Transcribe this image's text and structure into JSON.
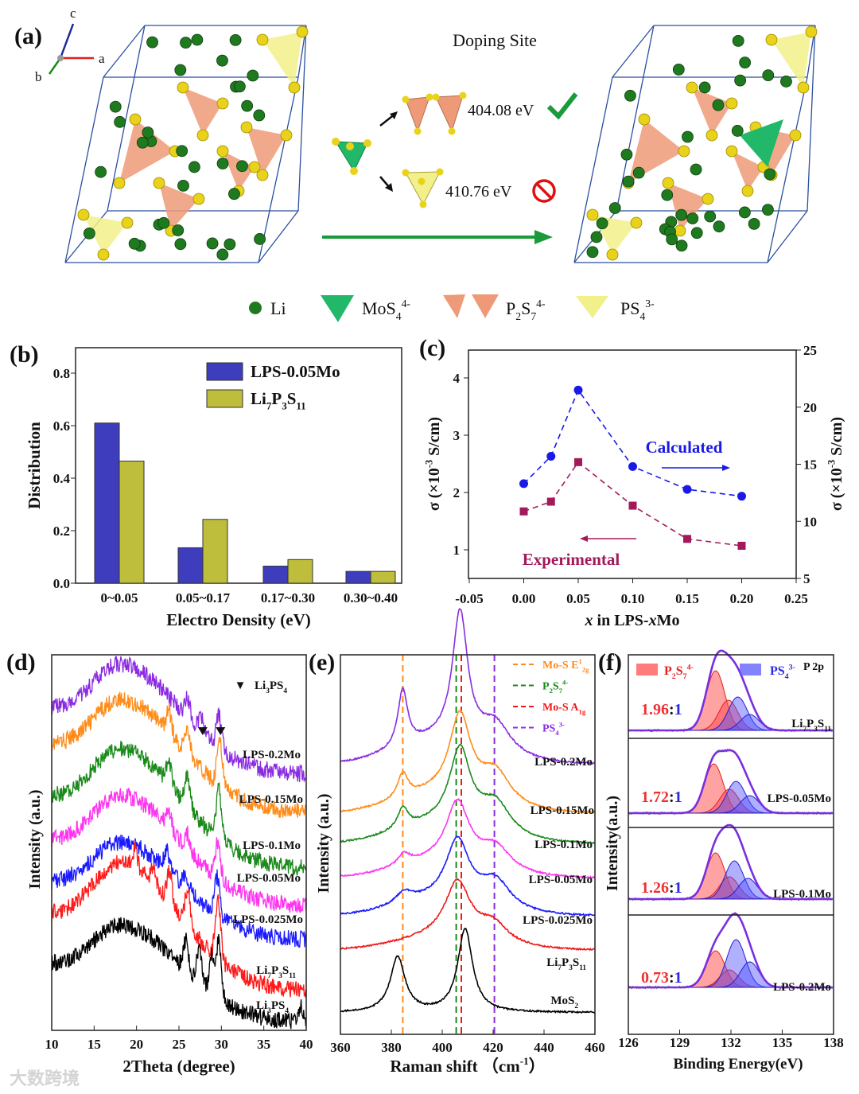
{
  "figure": {
    "panel_labels": [
      "(a)",
      "(b)",
      "(c)",
      "(d)",
      "(e)",
      "(f)"
    ],
    "watermark": "大数跨境"
  },
  "panel_a": {
    "axis_labels": [
      "a",
      "b",
      "c"
    ],
    "title": "Doping Site",
    "energies": [
      {
        "value": "404.08 eV",
        "status": "favorable",
        "icon": "checkmark-icon",
        "color": "#1a9a3a"
      },
      {
        "value": "410.76 eV",
        "status": "unfavorable",
        "icon": "prohibited-icon",
        "color": "#e01010"
      }
    ],
    "legend": [
      {
        "name": "li",
        "segments": [
          {
            "t": "Li"
          }
        ]
      },
      {
        "name": "mos4",
        "segments": [
          {
            "t": "MoS"
          },
          {
            "t": "4",
            "s": "sub"
          },
          {
            "t": "4-",
            "s": "sup"
          }
        ]
      },
      {
        "name": "p2s7",
        "segments": [
          {
            "t": "P"
          },
          {
            "t": "2",
            "s": "sub"
          },
          {
            "t": "S"
          },
          {
            "t": "7",
            "s": "sub"
          },
          {
            "t": "4-",
            "s": "sup"
          }
        ]
      },
      {
        "name": "ps4",
        "segments": [
          {
            "t": "PS"
          },
          {
            "t": "4",
            "s": "sub"
          },
          {
            "t": "3-",
            "s": "sup"
          }
        ]
      }
    ],
    "colors": {
      "li": "#1f7a1f",
      "s": "#e8d21a",
      "mos4": "#22b86a",
      "p2s7": "#ee9a78",
      "ps4": "#f2f08a",
      "cell": "#2a4fa0"
    }
  },
  "chart_data": [
    {
      "panel": "b",
      "type": "bar",
      "categories": [
        "0~0.05",
        "0.05~0.17",
        "0.17~0.30",
        "0.30~0.40"
      ],
      "series": [
        {
          "segments": [
            {
              "t": "LPS-0.05Mo"
            }
          ],
          "values": [
            0.61,
            0.135,
            0.065,
            0.045
          ],
          "color": "#3d3dbd"
        },
        {
          "segments": [
            {
              "t": "Li"
            },
            {
              "t": "7",
              "s": "sub"
            },
            {
              "t": "P"
            },
            {
              "t": "3",
              "s": "sub"
            },
            {
              "t": "S"
            },
            {
              "t": "11",
              "s": "sub"
            }
          ],
          "values": [
            0.465,
            0.243,
            0.09,
            0.045
          ],
          "color": "#bebe3c"
        }
      ],
      "xlabel": "Electro Density (eV)",
      "ylabel": "Distribution",
      "ylim": [
        0,
        0.89
      ],
      "yticks": [
        0,
        0.2,
        0.4,
        0.6,
        0.8
      ],
      "ytick_labels": [
        "0.0",
        "0.2",
        "0.4",
        "0.6",
        "0.8"
      ],
      "legend_position": "top-right"
    },
    {
      "panel": "c",
      "type": "line",
      "x": [
        0,
        0.025,
        0.05,
        0.1,
        0.15,
        0.2
      ],
      "series": [
        {
          "name": "Experimental",
          "axis": "left",
          "values": [
            1.67,
            1.84,
            2.53,
            1.77,
            1.19,
            1.07
          ],
          "color": "#a3195b",
          "marker": "square"
        },
        {
          "name": "Calculated",
          "axis": "right",
          "values": [
            13.3,
            15.7,
            21.5,
            14.8,
            12.8,
            12.2
          ],
          "color": "#1a1ae6",
          "marker": "circle"
        }
      ],
      "xlim": [
        -0.05,
        0.25
      ],
      "xticks": [
        -0.05,
        0,
        0.05,
        0.1,
        0.15,
        0.2,
        0.25
      ],
      "xtick_labels": [
        "-0.05",
        "0.00",
        "0.05",
        "0.10",
        "0.15",
        "0.20",
        "0.25"
      ],
      "ylim_left": [
        0.5,
        4.5
      ],
      "yticks_left": [
        1,
        2,
        3,
        4
      ],
      "ytick_labels_left": [
        "1",
        "2",
        "3",
        "4"
      ],
      "ylim_right": [
        5,
        25
      ],
      "yticks_right": [
        5,
        10,
        15,
        20,
        25
      ],
      "ytick_labels_right": [
        "5",
        "10",
        "15",
        "20",
        "25"
      ],
      "xlabel_segments": [
        {
          "t": "x",
          "s": "it"
        },
        {
          "t": " in LPS-"
        },
        {
          "t": "x",
          "s": "it"
        },
        {
          "t": "Mo"
        }
      ],
      "ylabel_segments": [
        {
          "t": "σ (×10"
        },
        {
          "t": "-3",
          "s": "sup"
        },
        {
          "t": " S/cm)"
        }
      ]
    },
    {
      "panel": "d",
      "type": "line",
      "xlim": [
        10,
        40
      ],
      "xticks": [
        10,
        15,
        20,
        25,
        30,
        35,
        40
      ],
      "xtick_labels": [
        "10",
        "15",
        "20",
        "25",
        "30",
        "35",
        "40"
      ],
      "xlabel": "2Theta (degree)",
      "ylabel": "Intensity (a.u.)",
      "marker_legend": {
        "symbol": "▼",
        "segments": [
          {
            "t": "Li"
          },
          {
            "t": "3",
            "s": "sub"
          },
          {
            "t": "PS"
          },
          {
            "t": "4",
            "s": "sub"
          }
        ]
      },
      "marker_positions": [
        27.8,
        29.9
      ],
      "broad_peak_center": 18,
      "series": [
        {
          "segments": [
            {
              "t": "LPS-0.2Mo"
            }
          ],
          "color": "#8a2be2",
          "offset": 6.8,
          "broad_height": 2.95,
          "peaks": [
            [
              26,
              0.5
            ],
            [
              27.6,
              0.4
            ],
            [
              29.7,
              0.9
            ]
          ]
        },
        {
          "segments": [
            {
              "t": "LPS-0.15Mo"
            }
          ],
          "color": "#ff8c1a",
          "offset": 5.8,
          "broad_height": 3.0,
          "peaks": [
            [
              23.8,
              0.6
            ],
            [
              26,
              0.7
            ],
            [
              29.8,
              1.3
            ]
          ]
        },
        {
          "segments": [
            {
              "t": "LPS-0.1Mo"
            }
          ],
          "color": "#1a8a1a",
          "offset": 4.3,
          "broad_height": 3.2,
          "peaks": [
            [
              23.8,
              0.6
            ],
            [
              26,
              0.8
            ],
            [
              29.7,
              1.3
            ]
          ]
        },
        {
          "segments": [
            {
              "t": "LPS-0.05Mo"
            }
          ],
          "color": "#ff33f0",
          "offset": 3.3,
          "broad_height": 2.95,
          "peaks": [
            [
              23.8,
              0.5
            ],
            [
              26,
              0.4
            ],
            [
              29.6,
              1.0
            ]
          ]
        },
        {
          "segments": [
            {
              "t": "LPS-0.025Mo"
            }
          ],
          "color": "#1a1aff",
          "offset": 2.4,
          "broad_height": 2.6,
          "peaks": [
            [
              23.6,
              0.5
            ],
            [
              25.8,
              0.3
            ],
            [
              29.5,
              1.0
            ]
          ]
        },
        {
          "segments": [
            {
              "t": "Li"
            },
            {
              "t": "7",
              "s": "sub"
            },
            {
              "t": "P"
            },
            {
              "t": "3",
              "s": "sub"
            },
            {
              "t": "S"
            },
            {
              "t": "11",
              "s": "sub"
            }
          ],
          "color": "#ff1a1a",
          "offset": 1.05,
          "broad_height": 3.4,
          "peaks": [
            [
              19.8,
              0.5
            ],
            [
              22,
              0.4
            ],
            [
              23.9,
              0.8
            ],
            [
              26,
              0.9
            ],
            [
              29.6,
              1.6
            ]
          ]
        },
        {
          "segments": [
            {
              "t": "Li"
            },
            {
              "t": "3",
              "s": "sub"
            },
            {
              "t": "PS"
            },
            {
              "t": "4",
              "s": "sub"
            }
          ],
          "color": "#000000",
          "offset": 0.2,
          "broad_height": 2.6,
          "peaks": [
            [
              25.8,
              0.8
            ],
            [
              27.4,
              0.9
            ],
            [
              28.9,
              1.0
            ],
            [
              29.7,
              1.5
            ],
            [
              39.3,
              0.4
            ]
          ]
        }
      ]
    },
    {
      "panel": "e",
      "type": "line",
      "xlim": [
        360,
        460
      ],
      "xticks": [
        360,
        380,
        400,
        420,
        440,
        460
      ],
      "xtick_labels": [
        "360",
        "380",
        "400",
        "420",
        "440",
        "460"
      ],
      "xlabel_segments": [
        {
          "t": "Raman shift （cm"
        },
        {
          "t": "-1",
          "s": "sup"
        },
        {
          "t": "）"
        }
      ],
      "ylabel": "Intensity (a.u.)",
      "reference_lines": [
        {
          "x": 384.5,
          "color": "#ff8c1a",
          "segments": [
            {
              "t": "Mo-S E"
            },
            {
              "t": "1",
              "s": "sup"
            },
            {
              "t": "2g",
              "s": "sub"
            }
          ]
        },
        {
          "x": 405.5,
          "color": "#1a8a1a",
          "segments": [
            {
              "t": "P"
            },
            {
              "t": "2",
              "s": "sub"
            },
            {
              "t": "S"
            },
            {
              "t": "7",
              "s": "sub"
            },
            {
              "t": "4-",
              "s": "sup"
            }
          ]
        },
        {
          "x": 407.5,
          "color": "#ee1a1a",
          "segments": [
            {
              "t": "Mo-S A"
            },
            {
              "t": "1g",
              "s": "sub"
            }
          ]
        },
        {
          "x": 420.5,
          "color": "#8a2be2",
          "segments": [
            {
              "t": "PS"
            },
            {
              "t": "4",
              "s": "sub"
            },
            {
              "t": "3-",
              "s": "sup"
            }
          ]
        }
      ],
      "series": [
        {
          "segments": [
            {
              "t": "LPS-0.2Mo"
            }
          ],
          "color": "#8a2be2",
          "offset": 7.1,
          "peaks": [
            [
              384.5,
              1.5,
              2.3
            ],
            [
              407,
              3.4,
              3.6
            ],
            [
              421,
              0.75,
              7
            ],
            [
              400,
              0.6,
              18
            ]
          ]
        },
        {
          "segments": [
            {
              "t": "LPS-0.15Mo"
            }
          ],
          "color": "#ff8c1a",
          "offset": 5.8,
          "peaks": [
            [
              384.5,
              0.65,
              2.5
            ],
            [
              407,
              2.1,
              5
            ],
            [
              421,
              0.8,
              7
            ],
            [
              400,
              0.5,
              18
            ]
          ]
        },
        {
          "segments": [
            {
              "t": "LPS-0.1Mo"
            }
          ],
          "color": "#1a8a1a",
          "offset": 5.0,
          "peaks": [
            [
              384.5,
              0.55,
              2.5
            ],
            [
              407,
              2.0,
              5
            ],
            [
              421,
              0.8,
              7
            ],
            [
              400,
              0.5,
              18
            ]
          ]
        },
        {
          "segments": [
            {
              "t": "LPS-0.05Mo"
            }
          ],
          "color": "#ff33f0",
          "offset": 4.1,
          "peaks": [
            [
              385,
              0.3,
              3
            ],
            [
              406,
              1.6,
              5.5
            ],
            [
              421,
              0.6,
              7
            ],
            [
              400,
              0.4,
              18
            ]
          ]
        },
        {
          "segments": [
            {
              "t": "LPS-0.025Mo"
            }
          ],
          "color": "#1a1aff",
          "offset": 3.1,
          "peaks": [
            [
              385,
              0.3,
              4
            ],
            [
              406,
              1.6,
              5.5
            ],
            [
              421,
              0.7,
              7
            ],
            [
              400,
              0.4,
              18
            ]
          ]
        },
        {
          "segments": [
            {
              "t": "Li"
            },
            {
              "t": "7",
              "s": "sub"
            },
            {
              "t": "P"
            },
            {
              "t": "3",
              "s": "sub"
            },
            {
              "t": "S"
            },
            {
              "t": "11",
              "s": "sub"
            }
          ],
          "color": "#ee1a1a",
          "offset": 2.2,
          "peaks": [
            [
              406,
              1.5,
              6
            ],
            [
              420,
              0.5,
              7
            ],
            [
              400,
              0.3,
              18
            ]
          ]
        },
        {
          "segments": [
            {
              "t": "MoS"
            },
            {
              "t": "2",
              "s": "sub"
            }
          ],
          "color": "#000000",
          "offset": 0.57,
          "peaks": [
            [
              382.5,
              1.45,
              3.5
            ],
            [
              409,
              2.2,
              3.5
            ]
          ]
        }
      ]
    },
    {
      "panel": "f",
      "type": "area",
      "xlim": [
        126,
        138
      ],
      "xticks": [
        126,
        129,
        132,
        135,
        138
      ],
      "xtick_labels": [
        "126",
        "129",
        "132",
        "135",
        "138"
      ],
      "xlabel": "Binding Energy(eV)",
      "ylabel": "Intensity(a.u.)",
      "legend": [
        {
          "segments": [
            {
              "t": "P"
            },
            {
              "t": "2",
              "s": "sub"
            },
            {
              "t": "S"
            },
            {
              "t": "7",
              "s": "sub"
            },
            {
              "t": "4-",
              "s": "sup"
            }
          ],
          "color": "#ff5050"
        },
        {
          "segments": [
            {
              "t": "PS"
            },
            {
              "t": "4",
              "s": "sub"
            },
            {
              "t": "3-",
              "s": "sup"
            }
          ],
          "color": "#5a5aff"
        }
      ],
      "region": "P 2p",
      "series": [
        {
          "segments": [
            {
              "t": "Li"
            },
            {
              "t": "7",
              "s": "sub"
            },
            {
              "t": "P"
            },
            {
              "t": "3",
              "s": "sub"
            },
            {
              "t": "S"
            },
            {
              "t": "11",
              "s": "sub"
            }
          ],
          "ratio_red": "1.96",
          "ratio_sep": ":",
          "ratio_blue": "1",
          "p2s7": [
            [
              131.1,
              0.75
            ],
            [
              131.85,
              0.38
            ]
          ],
          "ps4": [
            [
              132.4,
              0.42
            ],
            [
              133.1,
              0.2
            ]
          ]
        },
        {
          "segments": [
            {
              "t": "LPS-0.05Mo"
            }
          ],
          "ratio_red": "1.72",
          "ratio_sep": ":",
          "ratio_blue": "1",
          "p2s7": [
            [
              131.0,
              0.62
            ],
            [
              131.9,
              0.3
            ]
          ],
          "ps4": [
            [
              132.3,
              0.4
            ],
            [
              133.1,
              0.22
            ]
          ]
        },
        {
          "segments": [
            {
              "t": "LPS-0.1Mo"
            }
          ],
          "ratio_red": "1.26",
          "ratio_sep": ":",
          "ratio_blue": "1",
          "p2s7": [
            [
              131.1,
              0.58
            ],
            [
              131.9,
              0.28
            ]
          ],
          "ps4": [
            [
              132.2,
              0.48
            ],
            [
              133.0,
              0.26
            ]
          ]
        },
        {
          "segments": [
            {
              "t": "LPS-0.2Mo"
            }
          ],
          "ratio_red": "0.73",
          "ratio_sep": ":",
          "ratio_blue": "1",
          "p2s7": [
            [
              131.1,
              0.46
            ],
            [
              131.9,
              0.22
            ]
          ],
          "ps4": [
            [
              132.3,
              0.6
            ],
            [
              133.1,
              0.32
            ]
          ]
        }
      ]
    }
  ]
}
